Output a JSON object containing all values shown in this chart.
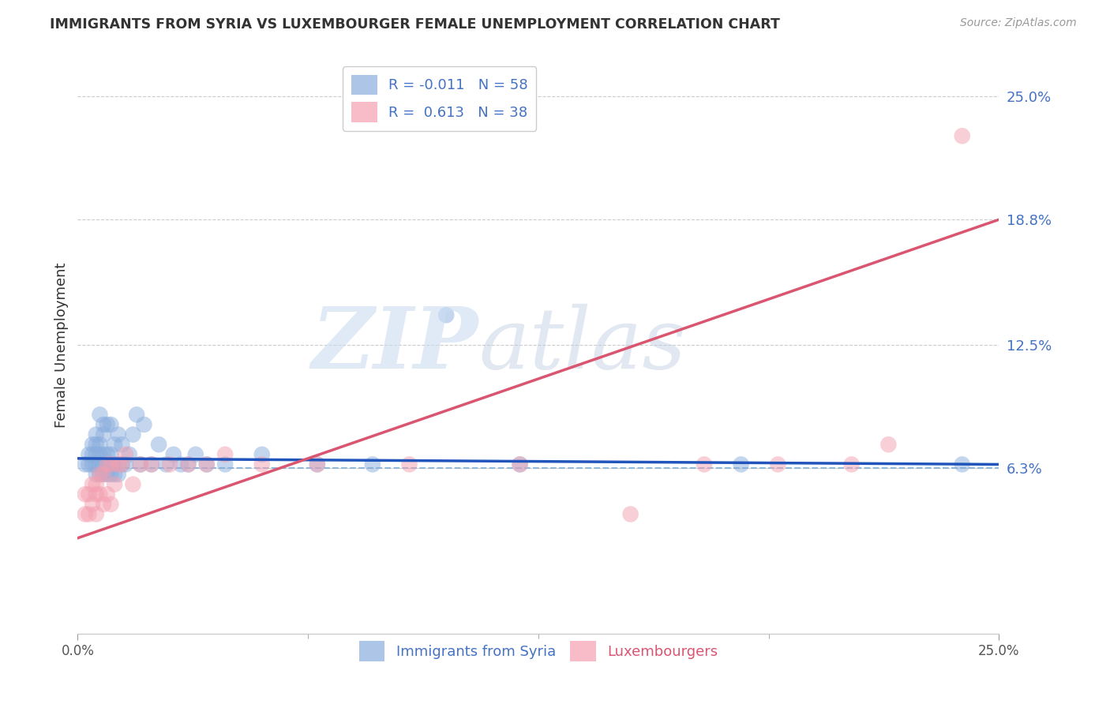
{
  "title": "IMMIGRANTS FROM SYRIA VS LUXEMBOURGER FEMALE UNEMPLOYMENT CORRELATION CHART",
  "source": "Source: ZipAtlas.com",
  "ylabel": "Female Unemployment",
  "xmin": 0.0,
  "xmax": 0.25,
  "ymin": -0.02,
  "ymax": 0.27,
  "yticks": [
    0.063,
    0.125,
    0.188,
    0.25
  ],
  "ytick_labels": [
    "6.3%",
    "12.5%",
    "18.8%",
    "25.0%"
  ],
  "xtick_labels": [
    "0.0%",
    "25.0%"
  ],
  "xticks": [
    0.0,
    0.25
  ],
  "dashed_hline": 0.063,
  "blue_R": -0.011,
  "blue_N": 58,
  "pink_R": 0.613,
  "pink_N": 38,
  "blue_color": "#8aaede",
  "pink_color": "#f4a0b0",
  "blue_line_color": "#2255bb",
  "pink_line_color": "#d95570",
  "dashed_line_color": "#90b8d8",
  "legend_label_blue": "Immigrants from Syria",
  "legend_label_pink": "Luxembourgers",
  "blue_points_x": [
    0.002,
    0.003,
    0.003,
    0.004,
    0.004,
    0.004,
    0.005,
    0.005,
    0.005,
    0.005,
    0.005,
    0.006,
    0.006,
    0.006,
    0.006,
    0.006,
    0.007,
    0.007,
    0.007,
    0.007,
    0.007,
    0.008,
    0.008,
    0.008,
    0.008,
    0.009,
    0.009,
    0.009,
    0.009,
    0.01,
    0.01,
    0.01,
    0.011,
    0.011,
    0.012,
    0.012,
    0.013,
    0.014,
    0.015,
    0.016,
    0.017,
    0.018,
    0.02,
    0.022,
    0.024,
    0.026,
    0.028,
    0.03,
    0.032,
    0.035,
    0.04,
    0.05,
    0.065,
    0.08,
    0.1,
    0.12,
    0.18,
    0.24
  ],
  "blue_points_y": [
    0.065,
    0.065,
    0.07,
    0.065,
    0.07,
    0.075,
    0.06,
    0.065,
    0.07,
    0.075,
    0.08,
    0.06,
    0.065,
    0.07,
    0.075,
    0.09,
    0.06,
    0.065,
    0.07,
    0.08,
    0.085,
    0.06,
    0.065,
    0.07,
    0.085,
    0.06,
    0.065,
    0.07,
    0.085,
    0.06,
    0.065,
    0.075,
    0.06,
    0.08,
    0.065,
    0.075,
    0.065,
    0.07,
    0.08,
    0.09,
    0.065,
    0.085,
    0.065,
    0.075,
    0.065,
    0.07,
    0.065,
    0.065,
    0.07,
    0.065,
    0.065,
    0.07,
    0.065,
    0.065,
    0.14,
    0.065,
    0.065,
    0.065
  ],
  "pink_points_x": [
    0.002,
    0.002,
    0.003,
    0.003,
    0.004,
    0.004,
    0.005,
    0.005,
    0.005,
    0.006,
    0.006,
    0.007,
    0.007,
    0.008,
    0.008,
    0.009,
    0.009,
    0.01,
    0.011,
    0.012,
    0.013,
    0.015,
    0.017,
    0.02,
    0.025,
    0.03,
    0.035,
    0.04,
    0.05,
    0.065,
    0.09,
    0.12,
    0.15,
    0.17,
    0.19,
    0.21,
    0.22,
    0.24
  ],
  "pink_points_y": [
    0.04,
    0.05,
    0.04,
    0.05,
    0.045,
    0.055,
    0.04,
    0.05,
    0.055,
    0.05,
    0.06,
    0.045,
    0.06,
    0.05,
    0.065,
    0.045,
    0.065,
    0.055,
    0.065,
    0.065,
    0.07,
    0.055,
    0.065,
    0.065,
    0.065,
    0.065,
    0.065,
    0.07,
    0.065,
    0.065,
    0.065,
    0.065,
    0.04,
    0.065,
    0.065,
    0.065,
    0.075,
    0.23
  ],
  "blue_line_x": [
    0.0,
    0.25
  ],
  "blue_line_y_start": 0.068,
  "blue_line_y_end": 0.065,
  "pink_line_x": [
    0.0,
    0.25
  ],
  "pink_line_y_start": 0.028,
  "pink_line_y_end": 0.188
}
